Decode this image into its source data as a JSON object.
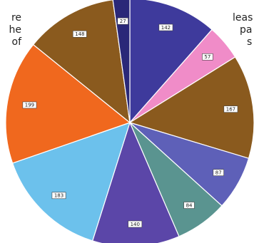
{
  "text_fragments": {
    "left": [
      "re",
      "he",
      "of"
    ],
    "right": [
      "leas",
      "pa",
      "s"
    ]
  },
  "chart_data": {
    "type": "pie",
    "title": "",
    "start": "top, clockwise",
    "slices": [
      {
        "value": 142,
        "label": "142",
        "color": "#3e3a9c"
      },
      {
        "value": 57,
        "label": "57",
        "color": "#f08cc8"
      },
      {
        "value": 167,
        "label": "167",
        "color": "#8a5a1e"
      },
      {
        "value": 87,
        "label": "87",
        "color": "#5e60b8"
      },
      {
        "value": 84,
        "label": "84",
        "color": "#5a9490"
      },
      {
        "value": 140,
        "label": "140",
        "color": "#5b46a8"
      },
      {
        "value": 183,
        "label": "183",
        "color": "#6cc1ec"
      },
      {
        "value": 199,
        "label": "199",
        "color": "#f0681e"
      },
      {
        "value": 148,
        "label": "148",
        "color": "#8a5a1e"
      },
      {
        "value": 27,
        "label": "27",
        "color": "#2a2878"
      }
    ]
  }
}
